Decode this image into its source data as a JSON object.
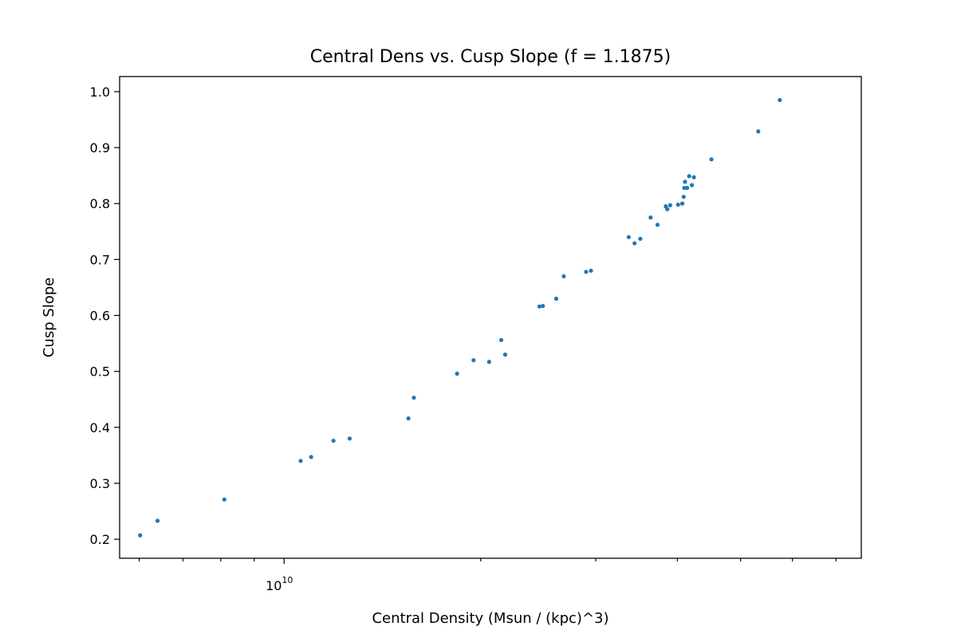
{
  "chart_data": {
    "type": "scatter",
    "title": "Central Dens vs. Cusp Slope (f = 1.1875)",
    "xlabel": "Central Density (Msun / (kpc)^3)",
    "ylabel": "Cusp Slope",
    "xscale": "log",
    "xlim": [
      5600000000.0,
      76500000000.0
    ],
    "ylim": [
      0.166,
      1.027
    ],
    "grid": false,
    "legend": "none",
    "marker_color": "#1f77b4",
    "x_ticks_major": [
      {
        "value": 10000000000.0,
        "base": "10",
        "exp": "10"
      }
    ],
    "x_ticks_minor": [
      6000000000.0,
      7000000000.0,
      8000000000.0,
      9000000000.0,
      20000000000.0,
      30000000000.0,
      40000000000.0,
      50000000000.0,
      60000000000.0,
      70000000000.0
    ],
    "y_ticks": [
      {
        "value": 0.2,
        "label": "0.2"
      },
      {
        "value": 0.3,
        "label": "0.3"
      },
      {
        "value": 0.4,
        "label": "0.4"
      },
      {
        "value": 0.5,
        "label": "0.5"
      },
      {
        "value": 0.6,
        "label": "0.6"
      },
      {
        "value": 0.7,
        "label": "0.7"
      },
      {
        "value": 0.8,
        "label": "0.8"
      },
      {
        "value": 0.9,
        "label": "0.9"
      },
      {
        "value": 1.0,
        "label": "1.0"
      }
    ],
    "points": [
      {
        "x": 6020000000.0,
        "y": 0.207
      },
      {
        "x": 6400000000.0,
        "y": 0.233
      },
      {
        "x": 8100000000.0,
        "y": 0.271
      },
      {
        "x": 10600000000.0,
        "y": 0.34
      },
      {
        "x": 11000000000.0,
        "y": 0.347
      },
      {
        "x": 11900000000.0,
        "y": 0.376
      },
      {
        "x": 12600000000.0,
        "y": 0.38
      },
      {
        "x": 15500000000.0,
        "y": 0.416
      },
      {
        "x": 15800000000.0,
        "y": 0.453
      },
      {
        "x": 18400000000.0,
        "y": 0.496
      },
      {
        "x": 19500000000.0,
        "y": 0.52
      },
      {
        "x": 20600000000.0,
        "y": 0.517
      },
      {
        "x": 21500000000.0,
        "y": 0.556
      },
      {
        "x": 21800000000.0,
        "y": 0.53
      },
      {
        "x": 24600000000.0,
        "y": 0.616
      },
      {
        "x": 24900000000.0,
        "y": 0.617
      },
      {
        "x": 26100000000.0,
        "y": 0.63
      },
      {
        "x": 26800000000.0,
        "y": 0.67
      },
      {
        "x": 29000000000.0,
        "y": 0.678
      },
      {
        "x": 29500000000.0,
        "y": 0.68
      },
      {
        "x": 33700000000.0,
        "y": 0.74
      },
      {
        "x": 34400000000.0,
        "y": 0.729
      },
      {
        "x": 35100000000.0,
        "y": 0.737
      },
      {
        "x": 36400000000.0,
        "y": 0.775
      },
      {
        "x": 37300000000.0,
        "y": 0.762
      },
      {
        "x": 38400000000.0,
        "y": 0.795
      },
      {
        "x": 38600000000.0,
        "y": 0.79
      },
      {
        "x": 39000000000.0,
        "y": 0.797
      },
      {
        "x": 40100000000.0,
        "y": 0.798
      },
      {
        "x": 40700000000.0,
        "y": 0.8
      },
      {
        "x": 40900000000.0,
        "y": 0.812
      },
      {
        "x": 41000000000.0,
        "y": 0.828
      },
      {
        "x": 41100000000.0,
        "y": 0.839
      },
      {
        "x": 41400000000.0,
        "y": 0.828
      },
      {
        "x": 41700000000.0,
        "y": 0.849
      },
      {
        "x": 42100000000.0,
        "y": 0.833
      },
      {
        "x": 42400000000.0,
        "y": 0.847
      },
      {
        "x": 45100000000.0,
        "y": 0.879
      },
      {
        "x": 53200000000.0,
        "y": 0.929
      },
      {
        "x": 57400000000.0,
        "y": 0.985
      }
    ]
  }
}
